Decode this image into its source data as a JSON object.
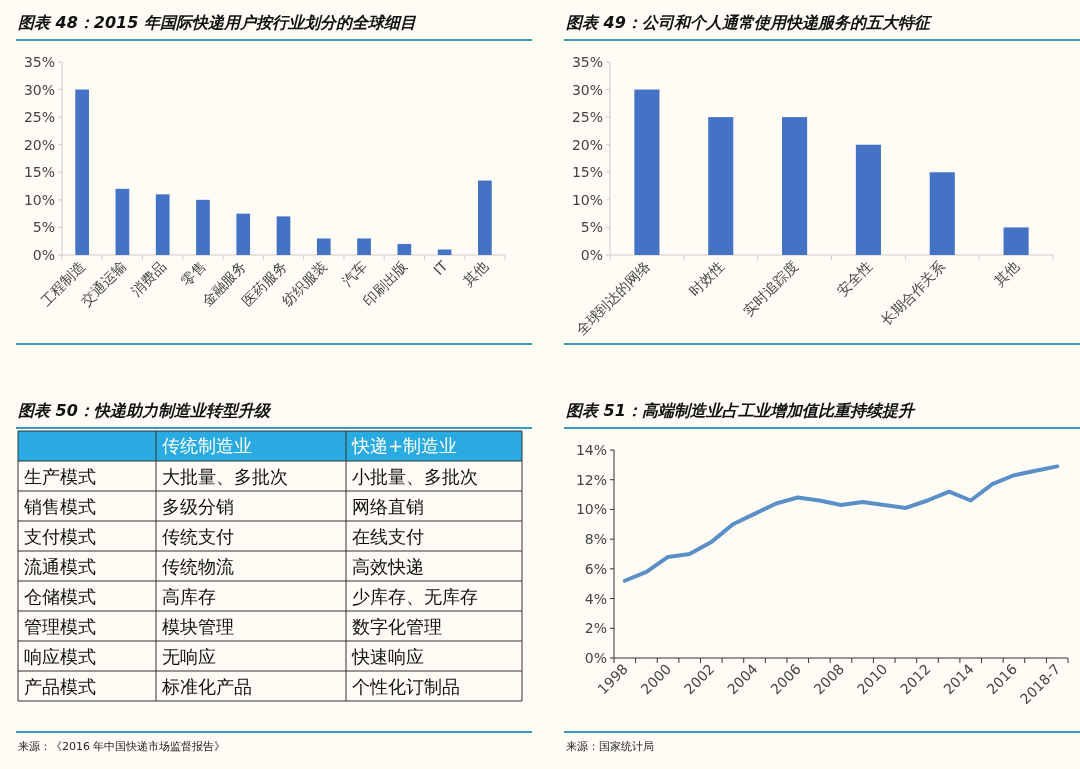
{
  "chart_data": [
    {
      "type": "bar",
      "title": "图表 48：2015 年国际快递用户按行业划分的全球细目",
      "categories": [
        "工程制造",
        "交通运输",
        "消费品",
        "零售",
        "金融服务",
        "医药服务",
        "纺织服装",
        "汽车",
        "印刷出版",
        "IT",
        "其他"
      ],
      "series": [
        {
          "color": "#4472c4",
          "values": [
            30,
            12,
            11,
            10,
            7.5,
            7,
            3,
            3,
            2,
            1,
            13.5
          ]
        }
      ],
      "ylim": [
        0,
        35
      ],
      "yticks": [
        {
          "value": 0,
          "label": "0%"
        },
        {
          "value": 5,
          "label": "5%"
        },
        {
          "value": 10,
          "label": "10%"
        },
        {
          "value": 15,
          "label": "15%"
        },
        {
          "value": 20,
          "label": "20%"
        },
        {
          "value": 25,
          "label": "25%"
        },
        {
          "value": 30,
          "label": "30%"
        },
        {
          "value": 35,
          "label": "35%"
        }
      ]
    },
    {
      "type": "bar",
      "title": "图表 49：公司和个人通常使用快递服务的五大特征",
      "categories": [
        "全球到达的网络",
        "时效性",
        "实时追踪度",
        "安全性",
        "长期合作关系",
        "其他"
      ],
      "series": [
        {
          "color": "#4472c4",
          "values": [
            30,
            25,
            25,
            20,
            15,
            5
          ]
        }
      ],
      "ylim": [
        0,
        35
      ],
      "yticks": [
        {
          "value": 0,
          "label": "0%"
        },
        {
          "value": 5,
          "label": "5%"
        },
        {
          "value": 10,
          "label": "10%"
        },
        {
          "value": 15,
          "label": "15%"
        },
        {
          "value": 20,
          "label": "20%"
        },
        {
          "value": 25,
          "label": "25%"
        },
        {
          "value": 30,
          "label": "30%"
        },
        {
          "value": 35,
          "label": "35%"
        }
      ]
    },
    {
      "type": "other",
      "title": "图表 50：快递助力制造业转型升级",
      "categories": [
        null,
        "传统制造业",
        "快递+制造业"
      ],
      "y_categories": [
        "生产模式",
        "销售模式",
        "支付模式",
        "流通模式",
        "仓储模式",
        "管理模式",
        "响应模式",
        "产品模式"
      ],
      "cell_labels": [
        [
          "大批量、多批次",
          "小批量、多批次"
        ],
        [
          "多级分销",
          "网络直销"
        ],
        [
          "传统支付",
          "在线支付"
        ],
        [
          "传统物流",
          "高效快递"
        ],
        [
          "高库存",
          "少库存、无库存"
        ],
        [
          "模块管理",
          "数字化管理"
        ],
        [
          "无响应",
          "快速响应"
        ],
        [
          "标准化产品",
          "个性化订制品"
        ]
      ],
      "color": "#29abe2",
      "annotations": [
        "来源：《2016 年中国快递市场监督报告》"
      ]
    },
    {
      "type": "line",
      "title": "图表 51：高端制造业占工业增加值比重持续提升",
      "categories": [
        "1998",
        null,
        "2000",
        null,
        "2002",
        null,
        "2004",
        null,
        "2006",
        null,
        "2008",
        null,
        "2010",
        null,
        "2012",
        null,
        "2014",
        null,
        "2016",
        null,
        "2018-7"
      ],
      "series": [
        {
          "color": "#5b8fc7",
          "values": [
            5.2,
            5.8,
            6.8,
            7.0,
            7.8,
            9.0,
            9.7,
            10.4,
            10.8,
            10.6,
            10.3,
            10.5,
            10.3,
            10.1,
            10.6,
            11.2,
            10.6,
            11.7,
            12.3,
            12.6,
            12.9
          ]
        }
      ],
      "ylim": [
        0,
        14
      ],
      "yticks": [
        {
          "value": 0,
          "label": "0%"
        },
        {
          "value": 2,
          "label": "2%"
        },
        {
          "value": 4,
          "label": "4%"
        },
        {
          "value": 6,
          "label": "6%"
        },
        {
          "value": 8,
          "label": "8%"
        },
        {
          "value": 10,
          "label": "10%"
        },
        {
          "value": 12,
          "label": "12%"
        },
        {
          "value": 14,
          "label": "14%"
        }
      ],
      "annotations": [
        "来源：国家统计局"
      ]
    }
  ]
}
